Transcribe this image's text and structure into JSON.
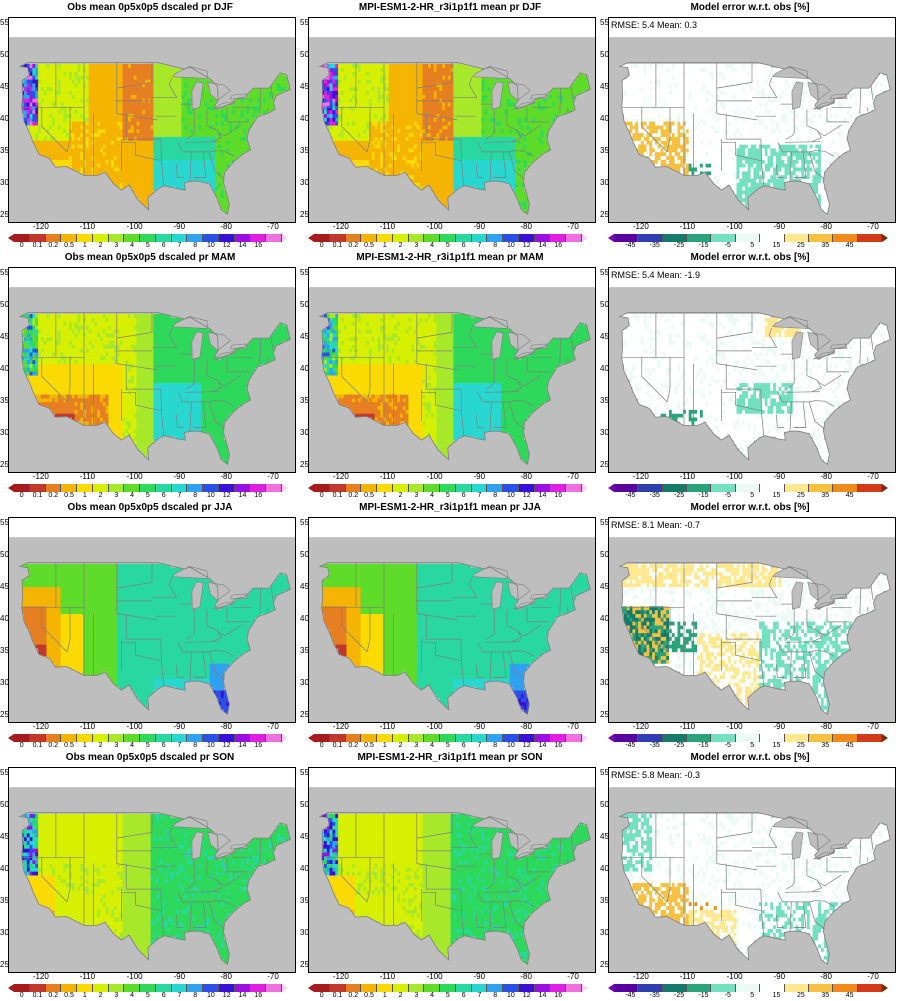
{
  "panels": [
    {
      "title": "Obs mean 0p5x0p5 dscaled pr DJF",
      "type": "clim",
      "season": "DJF"
    },
    {
      "title": "MPI-ESM1-2-HR_r3i1p1f1 mean pr DJF",
      "type": "clim",
      "season": "DJF"
    },
    {
      "title": "Model error w.r.t. obs [%]",
      "type": "bias",
      "season": "DJF",
      "rmse": "5.4",
      "mean": "0.3"
    },
    {
      "title": "Obs mean 0p5x0p5 dscaled pr MAM",
      "type": "clim",
      "season": "MAM"
    },
    {
      "title": "MPI-ESM1-2-HR_r3i1p1f1 mean pr MAM",
      "type": "clim",
      "season": "MAM"
    },
    {
      "title": "Model error w.r.t. obs [%]",
      "type": "bias",
      "season": "MAM",
      "rmse": "5.4",
      "mean": "-1.9"
    },
    {
      "title": "Obs mean 0p5x0p5 dscaled pr JJA",
      "type": "clim",
      "season": "JJA"
    },
    {
      "title": "MPI-ESM1-2-HR_r3i1p1f1 mean pr JJA",
      "type": "clim",
      "season": "JJA"
    },
    {
      "title": "Model error w.r.t. obs [%]",
      "type": "bias",
      "season": "JJA",
      "rmse": "8.1",
      "mean": "-0.7"
    },
    {
      "title": "Obs mean 0p5x0p5 dscaled pr SON",
      "type": "clim",
      "season": "SON"
    },
    {
      "title": "MPI-ESM1-2-HR_r3i1p1f1 mean pr SON",
      "type": "clim",
      "season": "SON"
    },
    {
      "title": "Model error w.r.t. obs [%]",
      "type": "bias",
      "season": "SON",
      "rmse": "5.8",
      "mean": "-0.3"
    }
  ],
  "labels": {
    "rmse_prefix": "RMSE: ",
    "mean_prefix": "Mean: "
  },
  "map": {
    "lon_ticks": [
      "-120",
      "-110",
      "-100",
      "-90",
      "-80",
      "-70"
    ],
    "lat_ticks": [
      "55",
      "50",
      "45",
      "40",
      "35",
      "30",
      "25"
    ],
    "lon_range": [
      -127,
      -66
    ],
    "lat_range": [
      24,
      56
    ],
    "ocean_color": "#bebebe",
    "border_color": "#7f7f7f"
  },
  "clim_colorbar": {
    "labels": [
      "0",
      "0.1",
      "0.2",
      "0.5",
      "1",
      "2",
      "3",
      "4",
      "5",
      "6",
      "7",
      "8",
      "10",
      "12",
      "14",
      "16"
    ],
    "colors": [
      "#a61c1c",
      "#c0392b",
      "#e67e22",
      "#f5b400",
      "#fada00",
      "#d6f000",
      "#a8e82a",
      "#5fdc2a",
      "#2ed85a",
      "#28d8a0",
      "#28d8d0",
      "#30a0f0",
      "#2a50e8",
      "#3a10d8",
      "#9a10e0",
      "#e020e0",
      "#f070e0",
      "#f8b0f0"
    ],
    "low_color": "#a61c1c",
    "high_color": "#f8d0f8"
  },
  "bias_colorbar": {
    "labels": [
      "-45",
      "-35",
      "-25",
      "-15",
      "-5",
      "5",
      "15",
      "25",
      "35",
      "45"
    ],
    "colors": [
      "#5a00a0",
      "#2f3fb0",
      "#167a6a",
      "#2aa37a",
      "#73e0c0",
      "#eafaf4",
      "#ffffff",
      "#ffe890",
      "#f6c040",
      "#f08a1a",
      "#d23a1a"
    ],
    "low_color": "#7a00b0",
    "high_color": "#7a2a00"
  }
}
